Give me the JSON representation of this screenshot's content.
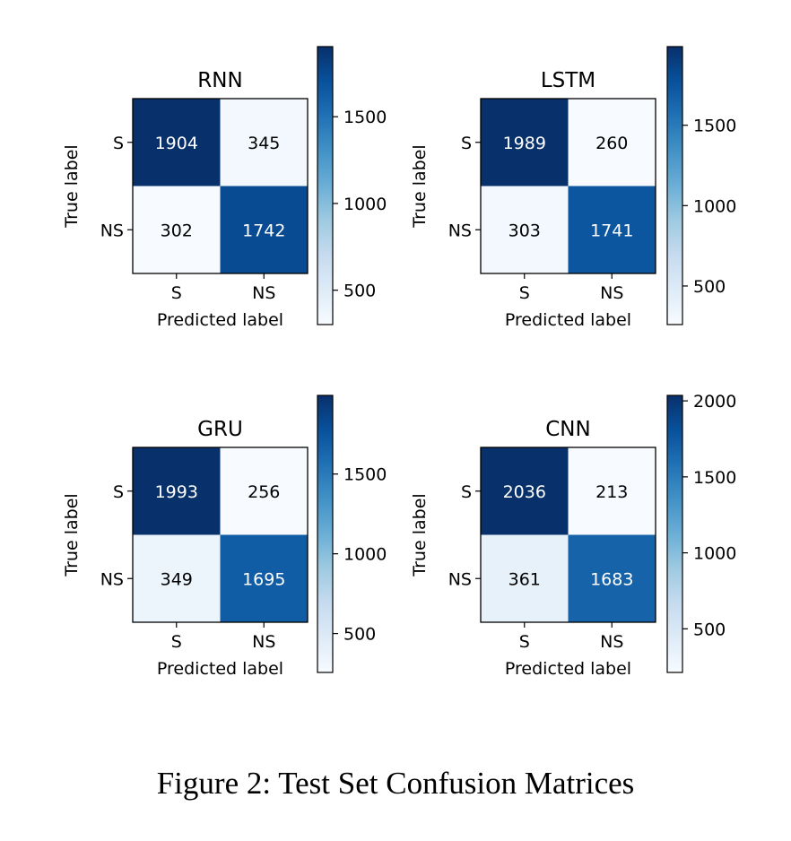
{
  "chart_data": [
    {
      "type": "heatmap",
      "title": "RNN",
      "xlabel": "Predicted label",
      "ylabel": "True label",
      "x_categories": [
        "S",
        "NS"
      ],
      "y_categories": [
        "S",
        "NS"
      ],
      "values": [
        [
          1904,
          345
        ],
        [
          302,
          1742
        ]
      ],
      "colormap": "Blues",
      "colorbar_ticks": [
        500,
        1000,
        1500
      ]
    },
    {
      "type": "heatmap",
      "title": "LSTM",
      "xlabel": "Predicted label",
      "ylabel": "True label",
      "x_categories": [
        "S",
        "NS"
      ],
      "y_categories": [
        "S",
        "NS"
      ],
      "values": [
        [
          1989,
          260
        ],
        [
          303,
          1741
        ]
      ],
      "colormap": "Blues",
      "colorbar_ticks": [
        500,
        1000,
        1500
      ]
    },
    {
      "type": "heatmap",
      "title": "GRU",
      "xlabel": "Predicted label",
      "ylabel": "True label",
      "x_categories": [
        "S",
        "NS"
      ],
      "y_categories": [
        "S",
        "NS"
      ],
      "values": [
        [
          1993,
          256
        ],
        [
          349,
          1695
        ]
      ],
      "colormap": "Blues",
      "colorbar_ticks": [
        500,
        1000,
        1500
      ]
    },
    {
      "type": "heatmap",
      "title": "CNN",
      "xlabel": "Predicted label",
      "ylabel": "True label",
      "x_categories": [
        "S",
        "NS"
      ],
      "y_categories": [
        "S",
        "NS"
      ],
      "values": [
        [
          2036,
          213
        ],
        [
          361,
          1683
        ]
      ],
      "colormap": "Blues",
      "colorbar_ticks": [
        500,
        1000,
        1500,
        2000
      ]
    }
  ],
  "caption": "Figure 2: Test Set Confusion Matrices"
}
